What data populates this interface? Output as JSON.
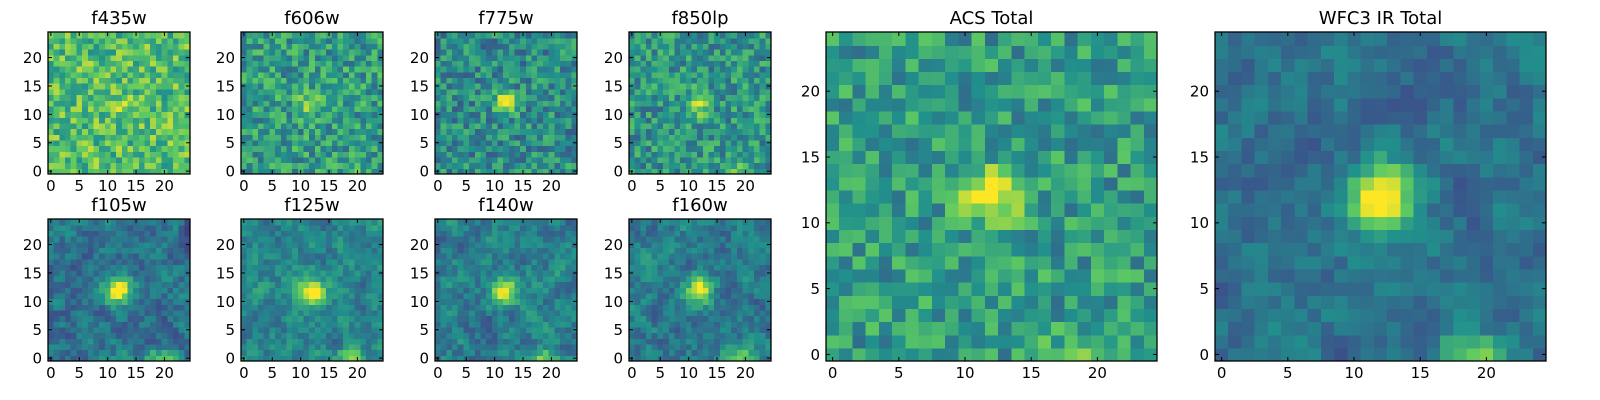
{
  "chart_data": {
    "type": "heatmap",
    "grid_size": 25,
    "colormap": "viridis",
    "colormap_stops": [
      "#440154",
      "#3b528b",
      "#21918c",
      "#5ec962",
      "#fde725"
    ],
    "panels": [
      {
        "title": "f435w",
        "x_ticks": [
          "0",
          "5",
          "10",
          "15",
          "20"
        ],
        "y_ticks": [
          "0",
          "5",
          "10",
          "15",
          "20"
        ],
        "source": {
          "seed": 11,
          "noise": 0.42,
          "base": 0.7,
          "peak": 0.08,
          "sigma": 2.0,
          "tail": 0.0,
          "smooth": 0
        }
      },
      {
        "title": "f606w",
        "x_ticks": [
          "0",
          "5",
          "10",
          "15",
          "20"
        ],
        "y_ticks": [
          "0",
          "5",
          "10",
          "15",
          "20"
        ],
        "source": {
          "seed": 23,
          "noise": 0.42,
          "base": 0.55,
          "peak": 0.3,
          "sigma": 1.5,
          "tail": 0.05,
          "smooth": 0
        }
      },
      {
        "title": "f775w",
        "x_ticks": [
          "0",
          "5",
          "10",
          "15",
          "20"
        ],
        "y_ticks": [
          "0",
          "5",
          "10",
          "15",
          "20"
        ],
        "source": {
          "seed": 37,
          "noise": 0.4,
          "base": 0.48,
          "peak": 0.55,
          "sigma": 1.3,
          "tail": 0.1,
          "smooth": 0
        }
      },
      {
        "title": "f850lp",
        "x_ticks": [
          "0",
          "5",
          "10",
          "15",
          "20"
        ],
        "y_ticks": [
          "0",
          "5",
          "10",
          "15",
          "20"
        ],
        "source": {
          "seed": 41,
          "noise": 0.4,
          "base": 0.52,
          "peak": 0.4,
          "sigma": 1.4,
          "tail": 0.2,
          "smooth": 0
        }
      },
      {
        "title": "f105w",
        "x_ticks": [
          "0",
          "5",
          "10",
          "15",
          "20"
        ],
        "y_ticks": [
          "0",
          "5",
          "10",
          "15",
          "20"
        ],
        "source": {
          "seed": 53,
          "noise": 0.38,
          "base": 0.38,
          "peak": 0.65,
          "sigma": 1.6,
          "tail": 0.35,
          "smooth": 1
        }
      },
      {
        "title": "f125w",
        "x_ticks": [
          "0",
          "5",
          "10",
          "15",
          "20"
        ],
        "y_ticks": [
          "0",
          "5",
          "10",
          "15",
          "20"
        ],
        "source": {
          "seed": 67,
          "noise": 0.36,
          "base": 0.45,
          "peak": 0.55,
          "sigma": 1.7,
          "tail": 0.35,
          "smooth": 1
        }
      },
      {
        "title": "f140w",
        "x_ticks": [
          "0",
          "5",
          "10",
          "15",
          "20"
        ],
        "y_ticks": [
          "0",
          "5",
          "10",
          "15",
          "20"
        ],
        "source": {
          "seed": 79,
          "noise": 0.38,
          "base": 0.42,
          "peak": 0.6,
          "sigma": 1.6,
          "tail": 0.35,
          "smooth": 1
        }
      },
      {
        "title": "f160w",
        "x_ticks": [
          "0",
          "5",
          "10",
          "15",
          "20"
        ],
        "y_ticks": [
          "0",
          "5",
          "10",
          "15",
          "20"
        ],
        "source": {
          "seed": 83,
          "noise": 0.38,
          "base": 0.4,
          "peak": 0.62,
          "sigma": 1.6,
          "tail": 0.4,
          "smooth": 1
        }
      },
      {
        "title": "ACS Total",
        "x_ticks": [
          "0",
          "5",
          "10",
          "15",
          "20"
        ],
        "y_ticks": [
          "0",
          "5",
          "10",
          "15",
          "20"
        ],
        "source": {
          "seed": 97,
          "noise": 0.38,
          "base": 0.55,
          "peak": 0.55,
          "sigma": 1.4,
          "tail": 0.2,
          "smooth": 0
        }
      },
      {
        "title": "WFC3 IR Total",
        "x_ticks": [
          "0",
          "5",
          "10",
          "15",
          "20"
        ],
        "y_ticks": [
          "0",
          "5",
          "10",
          "15",
          "20"
        ],
        "source": {
          "seed": 101,
          "noise": 0.3,
          "base": 0.38,
          "peak": 0.65,
          "sigma": 1.8,
          "tail": 0.45,
          "smooth": 1
        }
      }
    ]
  }
}
